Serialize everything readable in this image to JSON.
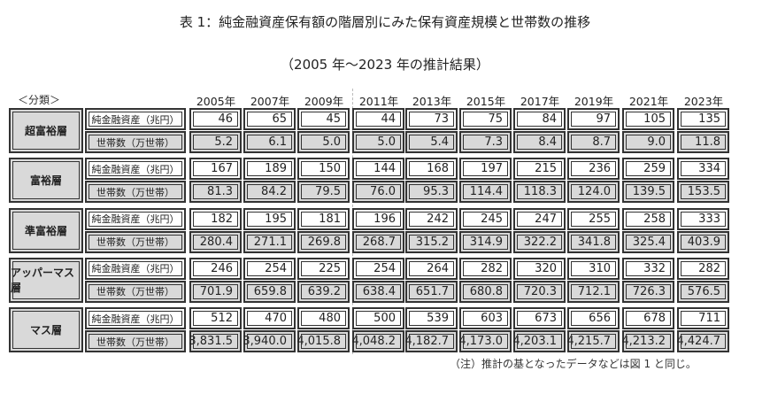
{
  "title": "表 1：純金融資産保有額の階層別にみた保有資産規模と世帯数の推移",
  "subtitle": "（2005 年～2023 年の推計結果）",
  "category_header": "＜分類＞",
  "years": [
    "2005年",
    "2007年",
    "2009年",
    "2011年",
    "2013年",
    "2015年",
    "2017年",
    "2019年",
    "2021年",
    "2023年"
  ],
  "row_labels": {
    "assets": "純金融資産（兆円）",
    "households": "世帯数（万世帯）"
  },
  "groups": [
    {
      "name": "超富裕層",
      "assets": [
        "46",
        "65",
        "45",
        "44",
        "73",
        "75",
        "84",
        "97",
        "105",
        "135"
      ],
      "households": [
        "5.2",
        "6.1",
        "5.0",
        "5.0",
        "5.4",
        "7.3",
        "8.4",
        "8.7",
        "9.0",
        "11.8"
      ]
    },
    {
      "name": "富裕層",
      "assets": [
        "167",
        "189",
        "150",
        "144",
        "168",
        "197",
        "215",
        "236",
        "259",
        "334"
      ],
      "households": [
        "81.3",
        "84.2",
        "79.5",
        "76.0",
        "95.3",
        "114.4",
        "118.3",
        "124.0",
        "139.5",
        "153.5"
      ]
    },
    {
      "name": "準富裕層",
      "assets": [
        "182",
        "195",
        "181",
        "196",
        "242",
        "245",
        "247",
        "255",
        "258",
        "333"
      ],
      "households": [
        "280.4",
        "271.1",
        "269.8",
        "268.7",
        "315.2",
        "314.9",
        "322.2",
        "341.8",
        "325.4",
        "403.9"
      ]
    },
    {
      "name": "アッパーマス層",
      "assets": [
        "246",
        "254",
        "225",
        "254",
        "264",
        "282",
        "320",
        "310",
        "332",
        "282"
      ],
      "households": [
        "701.9",
        "659.8",
        "639.2",
        "638.4",
        "651.7",
        "680.8",
        "720.3",
        "712.1",
        "726.3",
        "576.5"
      ]
    },
    {
      "name": "マス層",
      "assets": [
        "512",
        "470",
        "480",
        "500",
        "539",
        "603",
        "673",
        "656",
        "678",
        "711"
      ],
      "households": [
        "3,831.5",
        "3,940.0",
        "4,015.8",
        "4,048.2",
        "4,182.7",
        "4,173.0",
        "4,203.1",
        "4,215.7",
        "4,213.2",
        "4,424.7"
      ]
    }
  ],
  "note": "（注）推計の基となったデータなどは図 1 と同じ。",
  "colors": {
    "shaded_cell": "#d9d9d9",
    "border": "#333333"
  }
}
